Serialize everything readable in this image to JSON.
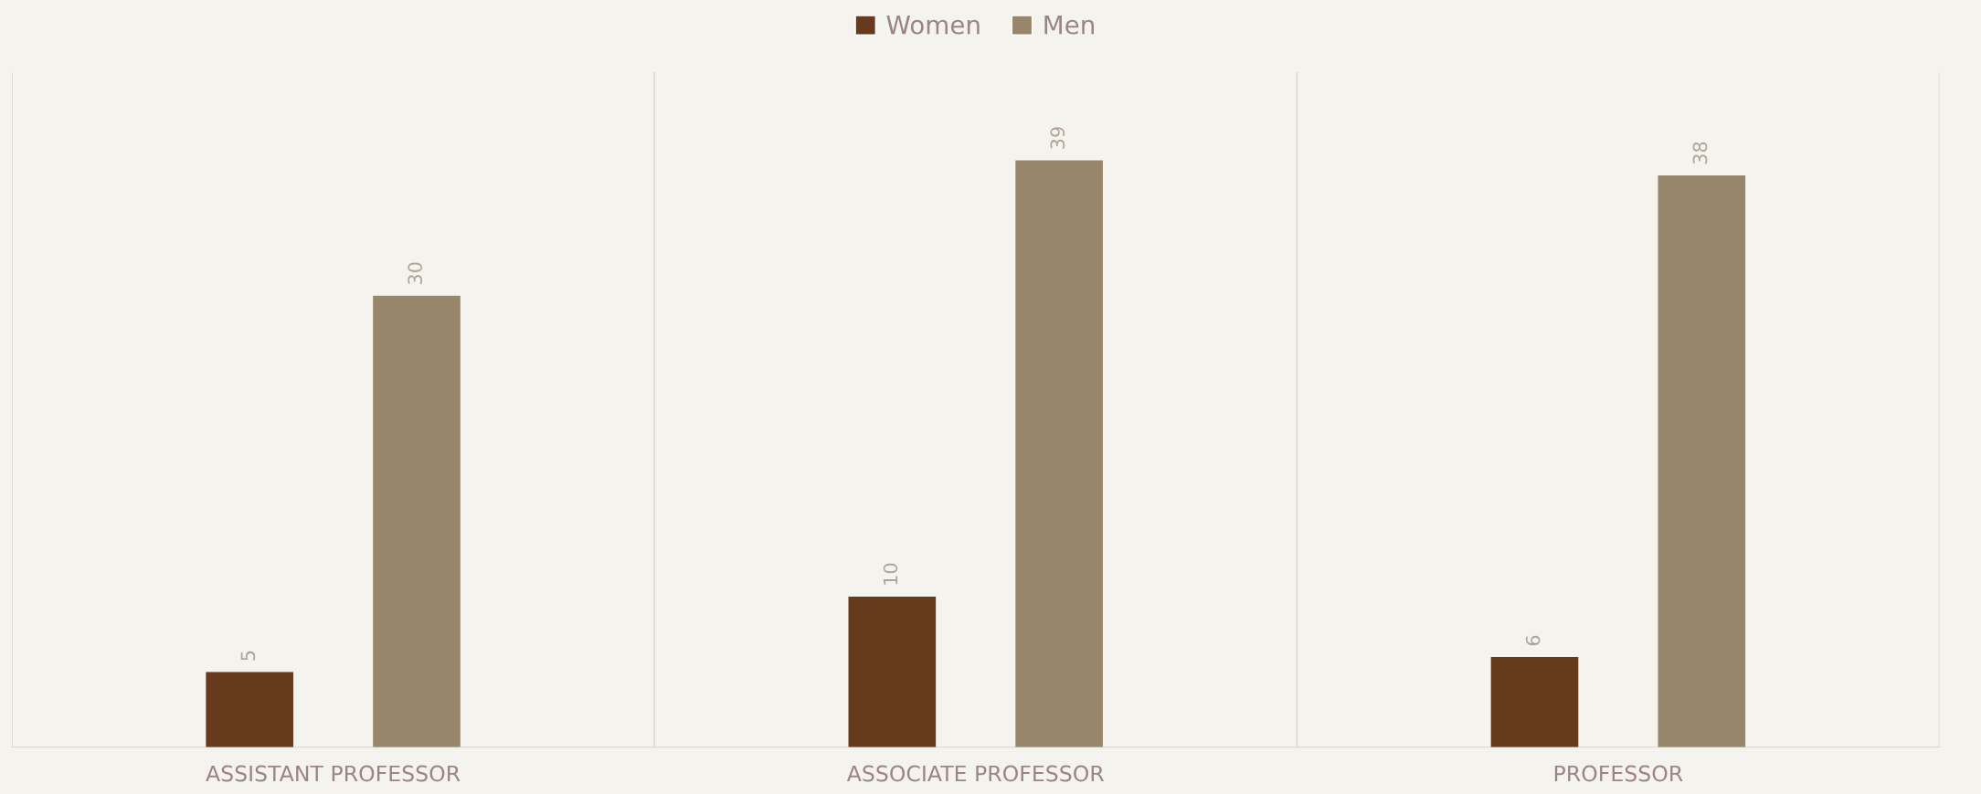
{
  "chart_data": {
    "type": "bar",
    "categories": [
      "ASSISTANT PROFESSOR",
      "ASSOCIATE PROFESSOR",
      "PROFESSOR"
    ],
    "series": [
      {
        "name": "Women",
        "color": "#673a1e",
        "values": [
          5,
          10,
          6
        ]
      },
      {
        "name": "Men",
        "color": "#98866b",
        "values": [
          30,
          39,
          38
        ]
      }
    ],
    "data_labels": true,
    "grid": "x",
    "legend": "top"
  }
}
